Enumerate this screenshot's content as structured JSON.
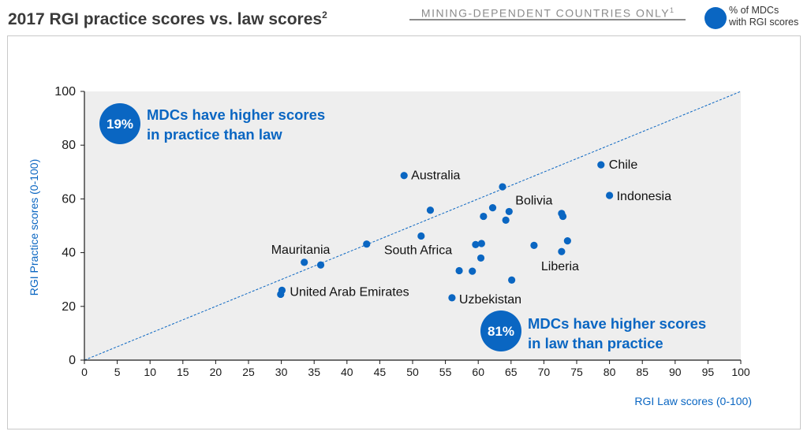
{
  "header": {
    "title": "2017 RGI practice scores vs. law scores",
    "title_sup": "2",
    "filter": "MINING-DEPENDENT COUNTRIES ONLY",
    "filter_sup": "1"
  },
  "legend": {
    "line1": "% of MDCs",
    "line2": "with RGI scores",
    "color": "#0a66c2"
  },
  "colors": {
    "accent": "#0a66c2",
    "plot_bg": "#eeeeee",
    "axis": "#1a1a1a",
    "label": "#333333"
  },
  "chart_data": {
    "type": "scatter",
    "title": "2017 RGI practice scores vs. law scores",
    "xlabel": "RGI Law scores (0-100)",
    "ylabel": "RGI Practice scores (0-100)",
    "xlim": [
      0,
      100
    ],
    "ylim": [
      0,
      100
    ],
    "xticks": [
      0,
      5,
      10,
      15,
      20,
      25,
      30,
      35,
      40,
      45,
      50,
      55,
      60,
      65,
      70,
      75,
      80,
      85,
      90,
      95,
      100
    ],
    "yticks": [
      0,
      20,
      40,
      60,
      80,
      100
    ],
    "grid": false,
    "reference_line": "y = x (dashed)",
    "points": [
      {
        "x": 48.7,
        "y": 68.7,
        "label": "Australia"
      },
      {
        "x": 78.7,
        "y": 72.7,
        "label": "Chile"
      },
      {
        "x": 80.0,
        "y": 61.3,
        "label": "Indonesia"
      },
      {
        "x": 63.7,
        "y": 64.5,
        "label": ""
      },
      {
        "x": 64.7,
        "y": 55.3,
        "label": "Bolivia"
      },
      {
        "x": 62.2,
        "y": 56.7,
        "label": ""
      },
      {
        "x": 60.8,
        "y": 53.5,
        "label": ""
      },
      {
        "x": 52.7,
        "y": 55.8,
        "label": ""
      },
      {
        "x": 64.2,
        "y": 52.1,
        "label": ""
      },
      {
        "x": 72.7,
        "y": 54.6,
        "label": ""
      },
      {
        "x": 72.9,
        "y": 53.5,
        "label": ""
      },
      {
        "x": 51.3,
        "y": 46.2,
        "label": "South Africa"
      },
      {
        "x": 43.0,
        "y": 43.2,
        "label": ""
      },
      {
        "x": 59.6,
        "y": 43.0,
        "label": ""
      },
      {
        "x": 60.5,
        "y": 43.4,
        "label": ""
      },
      {
        "x": 68.5,
        "y": 42.7,
        "label": ""
      },
      {
        "x": 73.6,
        "y": 44.4,
        "label": ""
      },
      {
        "x": 72.7,
        "y": 40.4,
        "label": "Liberia"
      },
      {
        "x": 60.4,
        "y": 38.0,
        "label": ""
      },
      {
        "x": 33.5,
        "y": 36.4,
        "label": "Mauritania"
      },
      {
        "x": 36.0,
        "y": 35.4,
        "label": ""
      },
      {
        "x": 57.1,
        "y": 33.3,
        "label": ""
      },
      {
        "x": 59.1,
        "y": 33.1,
        "label": ""
      },
      {
        "x": 65.1,
        "y": 29.8,
        "label": ""
      },
      {
        "x": 30.1,
        "y": 26.0,
        "label": "United Arab Emirates"
      },
      {
        "x": 29.9,
        "y": 24.5,
        "label": ""
      },
      {
        "x": 56.0,
        "y": 23.2,
        "label": "Uzbekistan"
      }
    ],
    "annotations": [
      {
        "badge": "19%",
        "line1": "MDCs have higher scores",
        "line2": "in practice than law"
      },
      {
        "badge": "81%",
        "line1": "MDCs have higher scores",
        "line2": "in law than practice"
      }
    ]
  }
}
